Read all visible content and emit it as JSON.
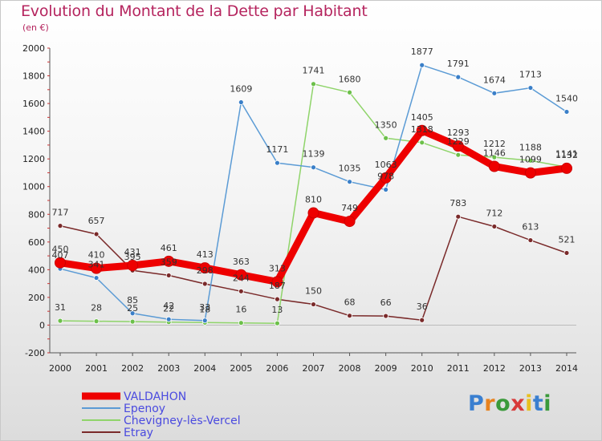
{
  "header": {
    "title": "Evolution du Montant de la Dette par Habitant",
    "subtitle": "(en €)"
  },
  "logo": {
    "text": "Proxiti",
    "letter_colors": [
      "#3a7fd0",
      "#e8821e",
      "#3a9a3a",
      "#d83a3a",
      "#e8c01e",
      "#3a7fd0",
      "#3a9a3a"
    ]
  },
  "chart_data": {
    "type": "line",
    "title": "Evolution du Montant de la Dette par Habitant",
    "subtitle": "(en €)",
    "xlabel": "",
    "ylabel": "",
    "x": [
      "2000",
      "2001",
      "2002",
      "2003",
      "2004",
      "2005",
      "2006",
      "2007",
      "2008",
      "2009",
      "2010",
      "2011",
      "2012",
      "2013",
      "2014"
    ],
    "ylim": [
      -200,
      2000
    ],
    "yticks": [
      -200,
      0,
      200,
      400,
      600,
      800,
      1000,
      1200,
      1400,
      1600,
      1800,
      2000
    ],
    "grid": "none",
    "legend_position": "bottom-left",
    "series": [
      {
        "name": "VALDAHON",
        "color": "#ee0000",
        "width": 9,
        "marker_fill": "#ee0000",
        "values": [
          450,
          410,
          431,
          461,
          413,
          363,
          313,
          810,
          749,
          1063,
          1405,
          1293,
          1146,
          1099,
          1132
        ]
      },
      {
        "name": "Epenoy",
        "color": "#5b9bd5",
        "width": 1.5,
        "marker_fill": "#3a7fc8",
        "values": [
          407,
          341,
          85,
          42,
          33,
          1609,
          1171,
          1139,
          1035,
          978,
          1877,
          1791,
          1674,
          1713,
          1540
        ]
      },
      {
        "name": "Chevigney-lès-Vercel",
        "color": "#8fd46a",
        "width": 1.5,
        "marker_fill": "#6cc04a",
        "values": [
          31,
          28,
          25,
          22,
          18,
          16,
          13,
          1741,
          1680,
          1350,
          1318,
          1229,
          1212,
          1188,
          1141
        ]
      },
      {
        "name": "Etray",
        "color": "#7a2a2a",
        "width": 1.5,
        "marker_fill": "#7a2a2a",
        "values": [
          717,
          657,
          395,
          359,
          298,
          244,
          187,
          150,
          68,
          66,
          36,
          783,
          712,
          613,
          521
        ]
      }
    ]
  }
}
